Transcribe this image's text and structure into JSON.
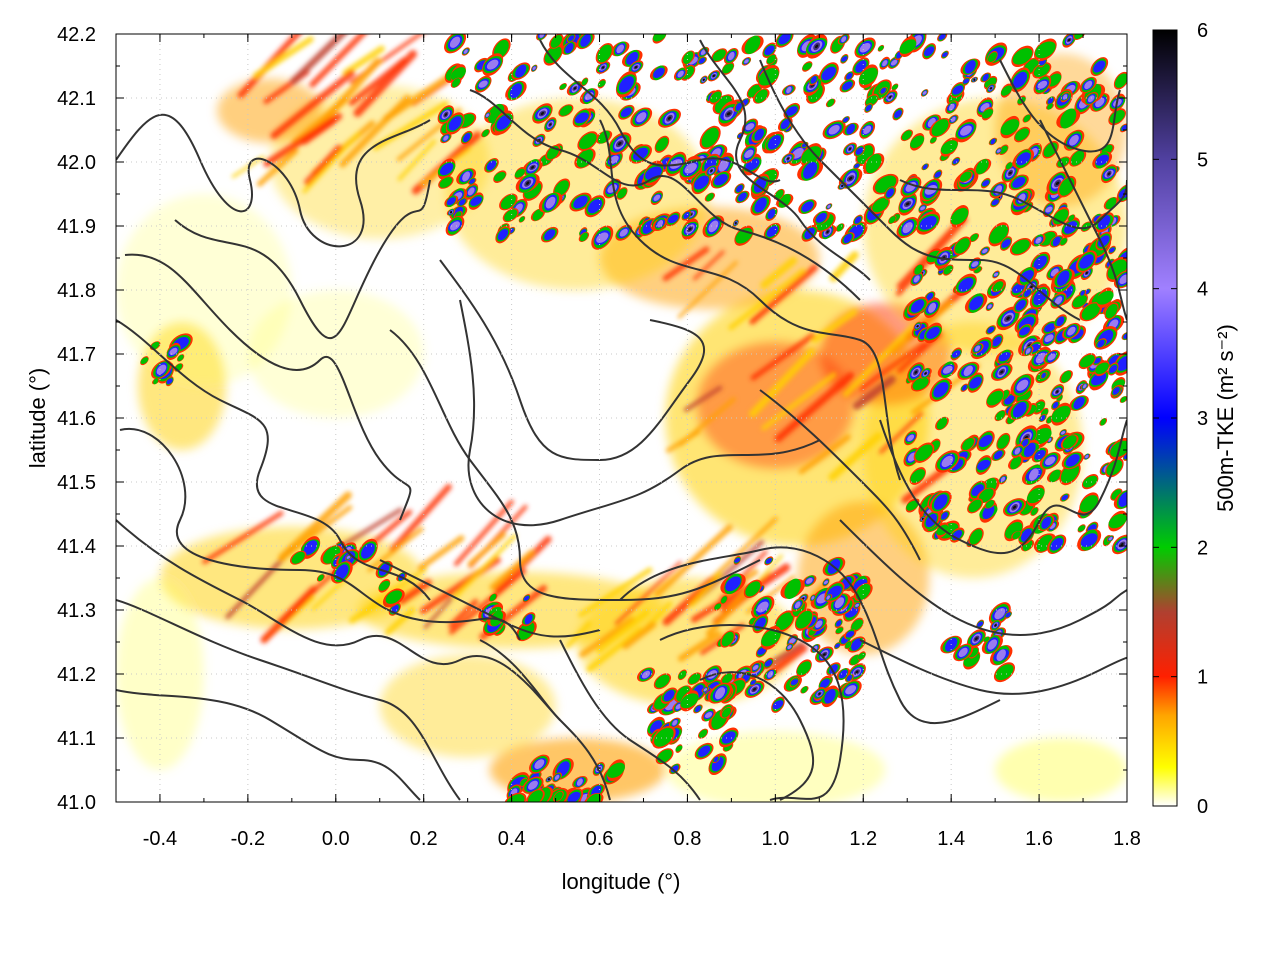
{
  "chart_data": {
    "type": "heatmap",
    "title": "",
    "xlabel": "longitude (°)",
    "ylabel": "latitude (°)",
    "xlim": [
      -0.5,
      1.8
    ],
    "ylim": [
      41.0,
      42.2
    ],
    "x_ticks": [
      -0.4,
      -0.2,
      0.0,
      0.2,
      0.4,
      0.6,
      0.8,
      1.0,
      1.2,
      1.4,
      1.6,
      1.8
    ],
    "x_tick_labels": [
      "-0.4",
      "-0.2",
      "0.0",
      "0.2",
      "0.4",
      "0.6",
      "0.8",
      "1.0",
      "1.2",
      "1.4",
      "1.6",
      "1.8"
    ],
    "y_ticks": [
      41.0,
      41.1,
      41.2,
      41.3,
      41.4,
      41.5,
      41.6,
      41.7,
      41.8,
      41.9,
      42.0,
      42.1,
      42.2
    ],
    "y_tick_labels": [
      "41.0",
      "41.1",
      "41.2",
      "41.3",
      "41.4",
      "41.5",
      "41.6",
      "41.7",
      "41.8",
      "41.9",
      "42.0",
      "42.1",
      "42.2"
    ],
    "colorbar": {
      "label": "500m-TKE (m² s⁻²)",
      "range": [
        0,
        6
      ],
      "ticks": [
        0,
        1,
        2,
        3,
        4,
        5,
        6
      ],
      "tick_labels": [
        "0",
        "1",
        "2",
        "3",
        "4",
        "5",
        "6"
      ],
      "colormap_stops": [
        {
          "value": 0.0,
          "color": "#ffffff"
        },
        {
          "value": 0.3,
          "color": "#ffff00"
        },
        {
          "value": 0.7,
          "color": "#ffa500"
        },
        {
          "value": 1.0,
          "color": "#ff2000"
        },
        {
          "value": 1.5,
          "color": "#b04030"
        },
        {
          "value": 2.0,
          "color": "#00cc00"
        },
        {
          "value": 3.0,
          "color": "#0000ff"
        },
        {
          "value": 4.0,
          "color": "#a080ff"
        },
        {
          "value": 5.0,
          "color": "#5040a0"
        },
        {
          "value": 6.0,
          "color": "#000000"
        }
      ]
    },
    "grid": true,
    "contour_color": "#333333"
  }
}
